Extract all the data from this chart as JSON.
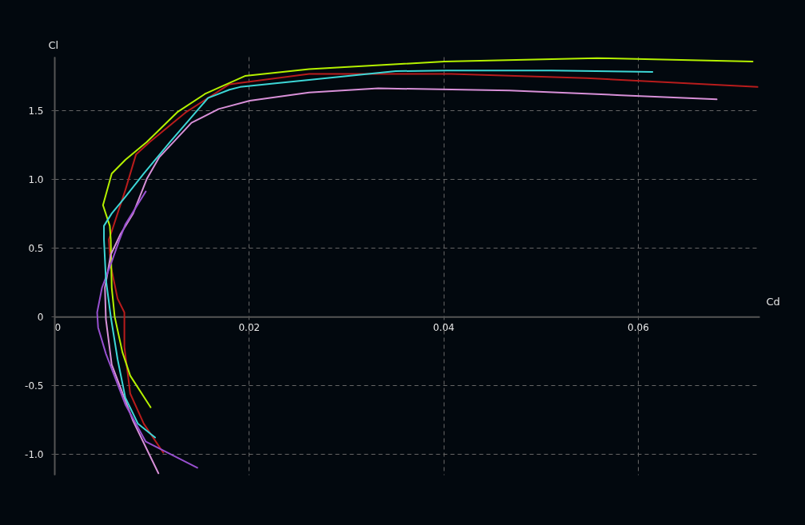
{
  "chart_data": {
    "type": "line",
    "xlabel": "Cd",
    "ylabel": "Cl",
    "xlim": [
      0,
      0.0725
    ],
    "ylim": [
      -1.15,
      1.89
    ],
    "xticks": [
      0,
      0.02,
      0.04,
      0.06
    ],
    "yticks": [
      {
        "value": -1,
        "label": "-1.0"
      },
      -0.5,
      0,
      0.5,
      {
        "value": 1,
        "label": "1.0"
      },
      1.5
    ],
    "grid": true,
    "marker": "none",
    "line_style": "solid",
    "series": [
      {
        "color": "#b81c1c",
        "x": [
          0.0112,
          0.0092,
          0.0078,
          0.0072,
          0.0072,
          0.0065,
          0.0058,
          0.0056,
          0.0059,
          0.0065,
          0.0073,
          0.0084,
          0.0098,
          0.0136,
          0.018,
          0.0262,
          0.0408,
          0.0547,
          0.0723
        ],
        "values": [
          -0.99,
          -0.78,
          -0.56,
          -0.22,
          0.03,
          0.13,
          0.37,
          0.56,
          0.62,
          0.75,
          0.92,
          1.18,
          1.27,
          1.49,
          1.69,
          1.765,
          1.765,
          1.735,
          1.67
        ]
      },
      {
        "color": "#b4f000",
        "x": [
          0.0099,
          0.0078,
          0.007,
          0.0062,
          0.0059,
          0.0058,
          0.0057,
          0.005,
          0.0059,
          0.0073,
          0.0095,
          0.0127,
          0.0155,
          0.0196,
          0.0262,
          0.0401,
          0.0558,
          0.0718
        ],
        "values": [
          -0.66,
          -0.43,
          -0.26,
          0,
          0.21,
          0.56,
          0.66,
          0.81,
          1.04,
          1.14,
          1.27,
          1.49,
          1.62,
          1.75,
          1.8,
          1.855,
          1.88,
          1.855
        ]
      },
      {
        "color": "#d890d8",
        "x": [
          0.0107,
          0.0081,
          0.0059,
          0.0053,
          0.0052,
          0.0058,
          0.0068,
          0.0081,
          0.0095,
          0.0108,
          0.0141,
          0.0169,
          0.0201,
          0.0262,
          0.0333,
          0.0468,
          0.0583,
          0.0681
        ],
        "values": [
          -1.14,
          -0.76,
          -0.35,
          -0.02,
          0.21,
          0.45,
          0.6,
          0.75,
          1.0,
          1.16,
          1.41,
          1.51,
          1.57,
          1.63,
          1.66,
          1.645,
          1.61,
          1.58
        ]
      },
      {
        "color": "#9850d0",
        "x": [
          0.0147,
          0.0094,
          0.0073,
          0.0053,
          0.0045,
          0.0044,
          0.0049,
          0.0059,
          0.0067,
          0.0073,
          0.0094
        ],
        "values": [
          -1.1,
          -0.91,
          -0.64,
          -0.27,
          -0.08,
          0.03,
          0.21,
          0.4,
          0.56,
          0.67,
          0.91
        ]
      },
      {
        "color": "#3dd6d6",
        "x": [
          0.01036,
          0.0086,
          0.0073,
          0.0065,
          0.0058,
          0.0053,
          0.0051,
          0.0051,
          0.0059,
          0.0073,
          0.0092,
          0.0119,
          0.0141,
          0.0158,
          0.018,
          0.0191,
          0.0351,
          0.0404,
          0.0511,
          0.0615
        ],
        "values": [
          -0.88,
          -0.78,
          -0.59,
          -0.31,
          0,
          0.27,
          0.56,
          0.66,
          0.75,
          0.87,
          1.04,
          1.27,
          1.45,
          1.59,
          1.65,
          1.67,
          1.785,
          1.79,
          1.79,
          1.78
        ]
      }
    ]
  }
}
